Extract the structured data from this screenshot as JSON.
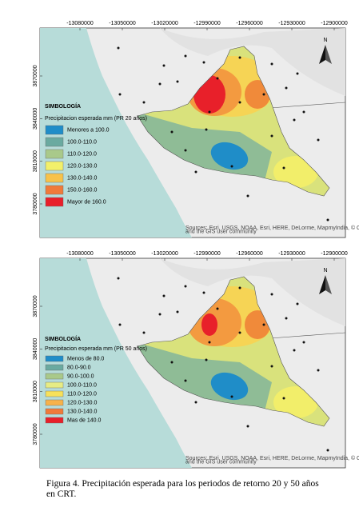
{
  "maps": [
    {
      "xticks": [
        -13080000,
        -13050000,
        -13020000,
        -12990000,
        -12960000,
        -12930000,
        -12900000
      ],
      "yticks": [
        3870000,
        3840000,
        3810000,
        3780000
      ],
      "north": "N",
      "legend": {
        "title": "SIMBOLOGÍA",
        "subtitle": "Precipitacion esperada mm (PR 20 años)",
        "items": [
          {
            "label": "Menores a 100.0",
            "color": "#1f8dc8"
          },
          {
            "label": "100.0-110.0",
            "color": "#6aaaa0"
          },
          {
            "label": "110.0-120.0",
            "color": "#a9c98a"
          },
          {
            "label": "120.0-130.0",
            "color": "#f2f06a"
          },
          {
            "label": "130.0-140.0",
            "color": "#f7c24a"
          },
          {
            "label": "150.0-160.0",
            "color": "#f07a3a"
          },
          {
            "label": "Mayor de 160.0",
            "color": "#e8202a"
          }
        ]
      },
      "attribution": "Sources: Esri, USGS, NOAA, Esri, HERE, DeLorme, MapmyIndia, © OpenStreetMap contributors, and the GIS user community"
    },
    {
      "xticks": [
        -13080000,
        -13050000,
        -13020000,
        -12990000,
        -12960000,
        -12930000,
        -12900000
      ],
      "yticks": [
        3870000,
        3840000,
        3810000,
        3780000
      ],
      "north": "N",
      "legend": {
        "title": "SIMBOLOGÍA",
        "subtitle": "Precipitacion esperada mm (PR 50 años)",
        "items": [
          {
            "label": "Menos de 80.0",
            "color": "#1f8dc8"
          },
          {
            "label": "80.0-90.0",
            "color": "#6aaaa0"
          },
          {
            "label": "90.0-100.0",
            "color": "#a9c98a"
          },
          {
            "label": "100.0-110.0",
            "color": "#e6ec84"
          },
          {
            "label": "110.0-120.0",
            "color": "#f7e15a"
          },
          {
            "label": "120.0-130.0",
            "color": "#f7b24a"
          },
          {
            "label": "130.0-140.0",
            "color": "#f07a3a"
          },
          {
            "label": "Mas de 140.0",
            "color": "#e8202a"
          }
        ]
      },
      "attribution": "Sources: Esri, USGS, NOAA, Esri, HERE, DeLorme, MapmyIndia, © OpenStreetMap contributors, and the GIS user community"
    }
  ],
  "caption": "Figura 4. Precipitación esperada para los periodos de retorno 20 y 50 años en CRT."
}
